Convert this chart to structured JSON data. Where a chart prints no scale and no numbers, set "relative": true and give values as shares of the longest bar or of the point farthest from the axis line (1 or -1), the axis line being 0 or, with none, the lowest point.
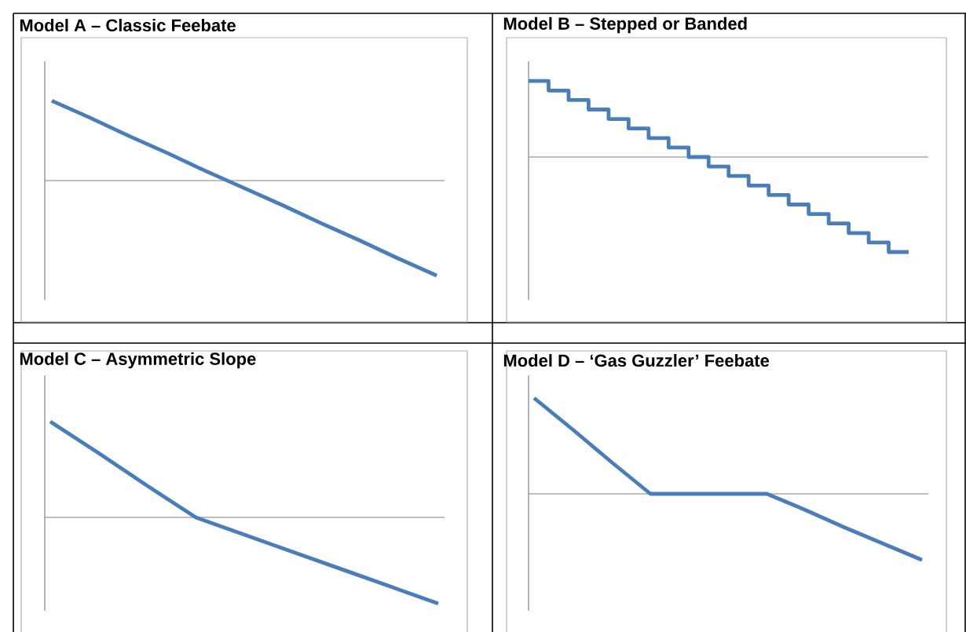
{
  "chart_data": [
    {
      "type": "line",
      "title": "Model A – Classic Feebate",
      "categories": [
        null,
        null,
        null,
        null,
        null,
        null,
        null,
        null,
        null,
        null,
        null
      ],
      "values": [
        0.84,
        0.66,
        0.47,
        0.29,
        0.1,
        -0.08,
        -0.26,
        -0.45,
        -0.63,
        -0.82,
        -1
      ],
      "color": "#4a7ebb",
      "relative": true
    },
    {
      "type": "step",
      "title": "Model B – Stepped or Banded",
      "categories": [
        null,
        null,
        null,
        null,
        null,
        null,
        null,
        null,
        null,
        null,
        null,
        null,
        null,
        null,
        null,
        null,
        null,
        null,
        null,
        null
      ],
      "values": [
        0.8,
        0.7,
        0.6,
        0.5,
        0.4,
        0.3,
        0.2,
        0.1,
        0,
        -0.1,
        -0.2,
        -0.3,
        -0.4,
        -0.5,
        -0.6,
        -0.7,
        -0.8,
        -0.9,
        -1,
        -1
      ],
      "color": "#4a7ebb",
      "relative": true
    },
    {
      "type": "line",
      "title": "Model C – Asymmetric Slope",
      "categories": [
        null,
        null,
        null,
        null,
        null,
        null,
        null,
        null,
        null
      ],
      "values": [
        1,
        0.67,
        0.33,
        0,
        -0.18,
        -0.36,
        -0.54,
        -0.72,
        -0.9
      ],
      "color": "#4a7ebb",
      "relative": true
    },
    {
      "type": "line",
      "title": "Model D – ‘Gas Guzzler’ Feebate",
      "categories": [
        null,
        null,
        null,
        null,
        null,
        null,
        null,
        null,
        null,
        null,
        null
      ],
      "values": [
        1,
        0.67,
        0.33,
        0,
        0,
        0,
        0,
        -0.17,
        -0.35,
        -0.52,
        -0.69
      ],
      "color": "#4a7ebb",
      "relative": true
    }
  ]
}
